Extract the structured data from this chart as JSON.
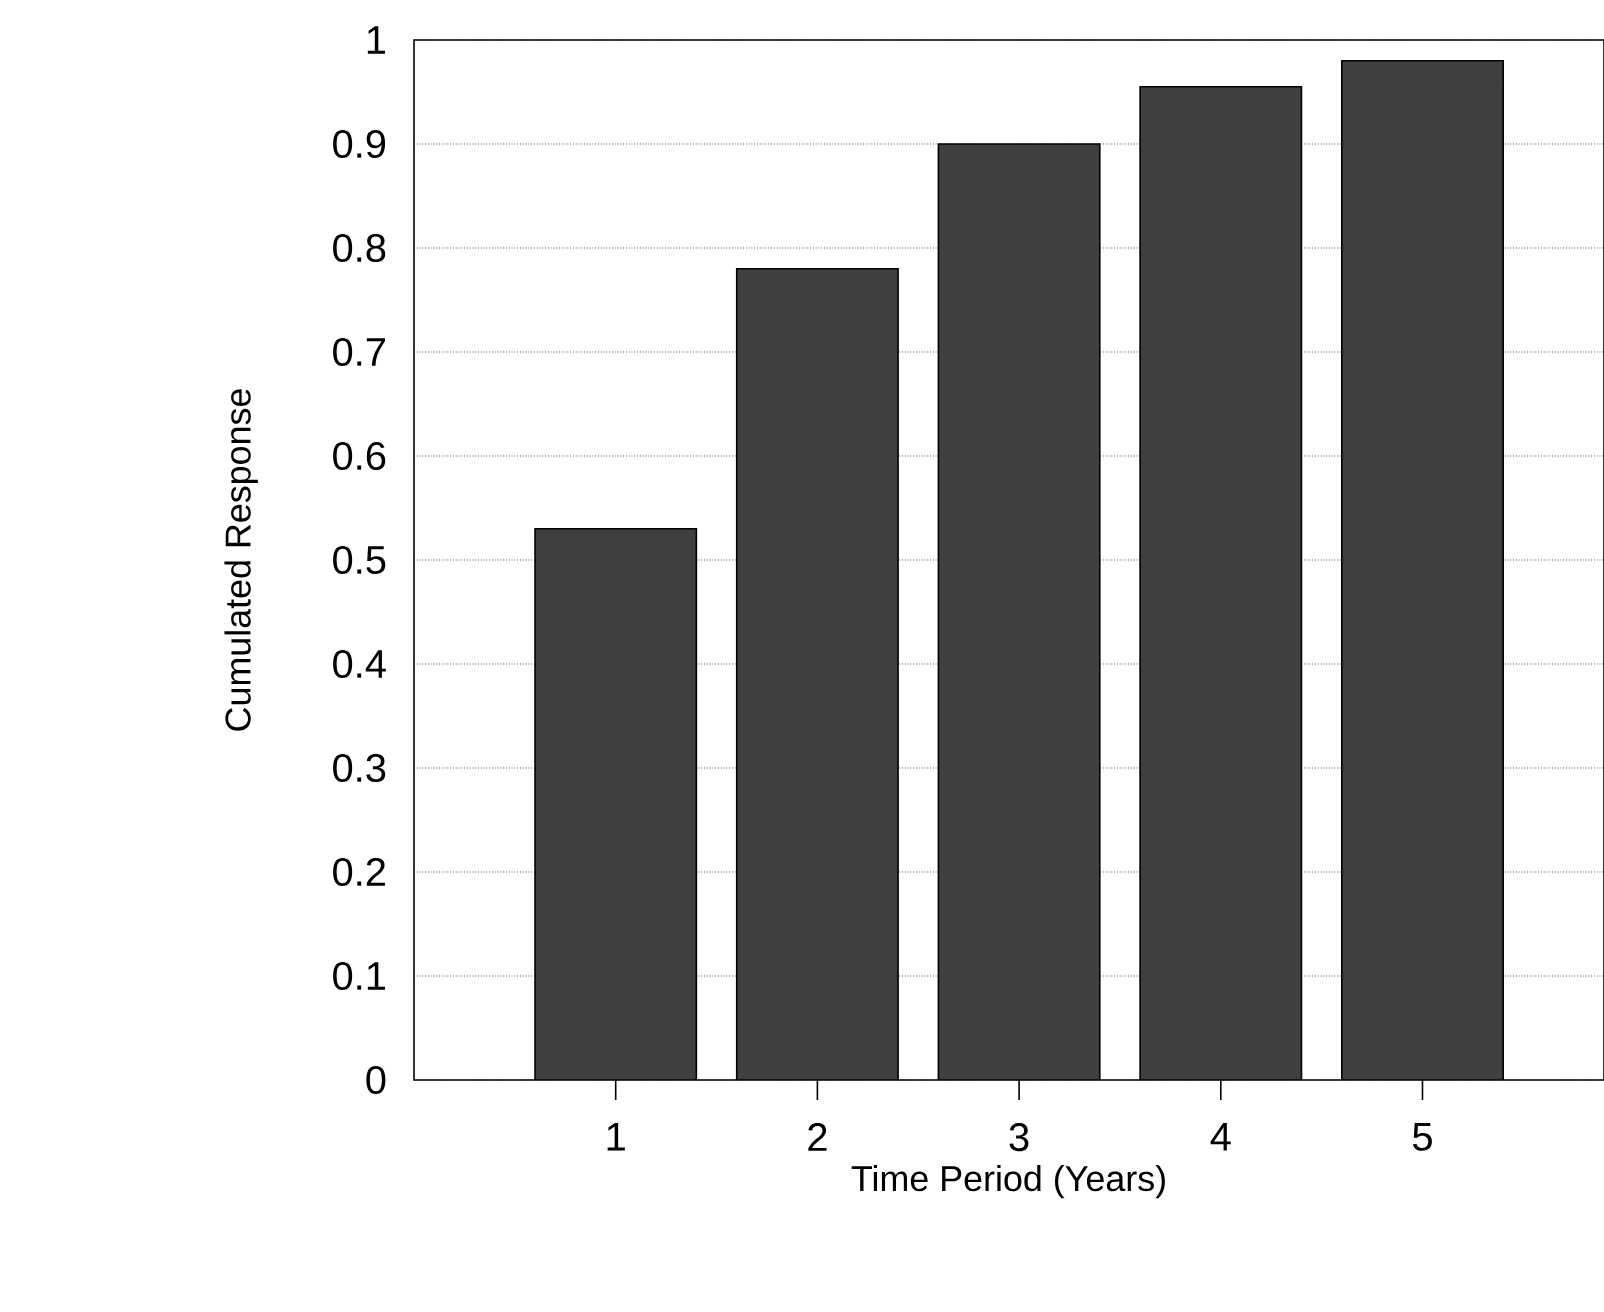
{
  "chart_data": {
    "type": "bar",
    "xlabel": "Time Period (Years)",
    "ylabel": "Cumulated Response",
    "categories": [
      "1",
      "2",
      "3",
      "4",
      "5"
    ],
    "values": [
      0.53,
      0.78,
      0.9,
      0.955,
      0.98
    ],
    "color": "#404040",
    "ylim": [
      0,
      1
    ],
    "yticks": [
      0,
      0.1,
      0.2,
      0.3,
      0.4,
      0.5,
      0.6,
      0.7,
      0.8,
      0.9,
      1
    ],
    "grid": "y"
  }
}
